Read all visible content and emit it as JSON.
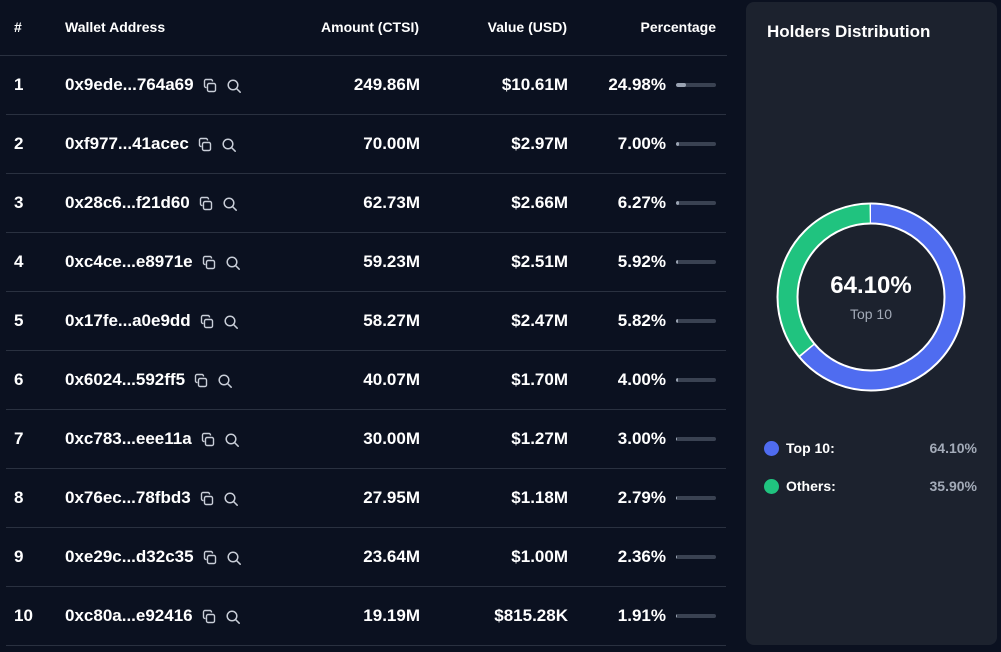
{
  "colors": {
    "background": "#0b1120",
    "panel": "#1c222e",
    "top10": "#4f6cf0",
    "others": "#20c37f",
    "muted": "#a3abb8"
  },
  "table": {
    "headers": {
      "rank": "#",
      "address": "Wallet Address",
      "amount": "Amount (CTSI)",
      "value": "Value (USD)",
      "percentage": "Percentage"
    },
    "rows": [
      {
        "rank": "1",
        "address": "0x9ede...764a69",
        "amount": "249.86M",
        "value": "$10.61M",
        "percentage": "24.98%",
        "pct": 24.98
      },
      {
        "rank": "2",
        "address": "0xf977...41acec",
        "amount": "70.00M",
        "value": "$2.97M",
        "percentage": "7.00%",
        "pct": 7.0
      },
      {
        "rank": "3",
        "address": "0x28c6...f21d60",
        "amount": "62.73M",
        "value": "$2.66M",
        "percentage": "6.27%",
        "pct": 6.27
      },
      {
        "rank": "4",
        "address": "0xc4ce...e8971e",
        "amount": "59.23M",
        "value": "$2.51M",
        "percentage": "5.92%",
        "pct": 5.92
      },
      {
        "rank": "5",
        "address": "0x17fe...a0e9dd",
        "amount": "58.27M",
        "value": "$2.47M",
        "percentage": "5.82%",
        "pct": 5.82
      },
      {
        "rank": "6",
        "address": "0x6024...592ff5",
        "amount": "40.07M",
        "value": "$1.70M",
        "percentage": "4.00%",
        "pct": 4.0
      },
      {
        "rank": "7",
        "address": "0xc783...eee11a",
        "amount": "30.00M",
        "value": "$1.27M",
        "percentage": "3.00%",
        "pct": 3.0
      },
      {
        "rank": "8",
        "address": "0x76ec...78fbd3",
        "amount": "27.95M",
        "value": "$1.18M",
        "percentage": "2.79%",
        "pct": 2.79
      },
      {
        "rank": "9",
        "address": "0xe29c...d32c35",
        "amount": "23.64M",
        "value": "$1.00M",
        "percentage": "2.36%",
        "pct": 2.36
      },
      {
        "rank": "10",
        "address": "0xc80a...e92416",
        "amount": "19.19M",
        "value": "$815.28K",
        "percentage": "1.91%",
        "pct": 1.91
      }
    ],
    "row_icons": [
      "copy-icon",
      "search-icon"
    ]
  },
  "distribution": {
    "title": "Holders Distribution",
    "center_value": "64.10%",
    "center_label": "Top 10",
    "legend": [
      {
        "label": "Top 10:",
        "value": "64.10%",
        "color": "#4f6cf0",
        "fraction": 0.641
      },
      {
        "label": "Others:",
        "value": "35.90%",
        "color": "#20c37f",
        "fraction": 0.359
      }
    ]
  }
}
